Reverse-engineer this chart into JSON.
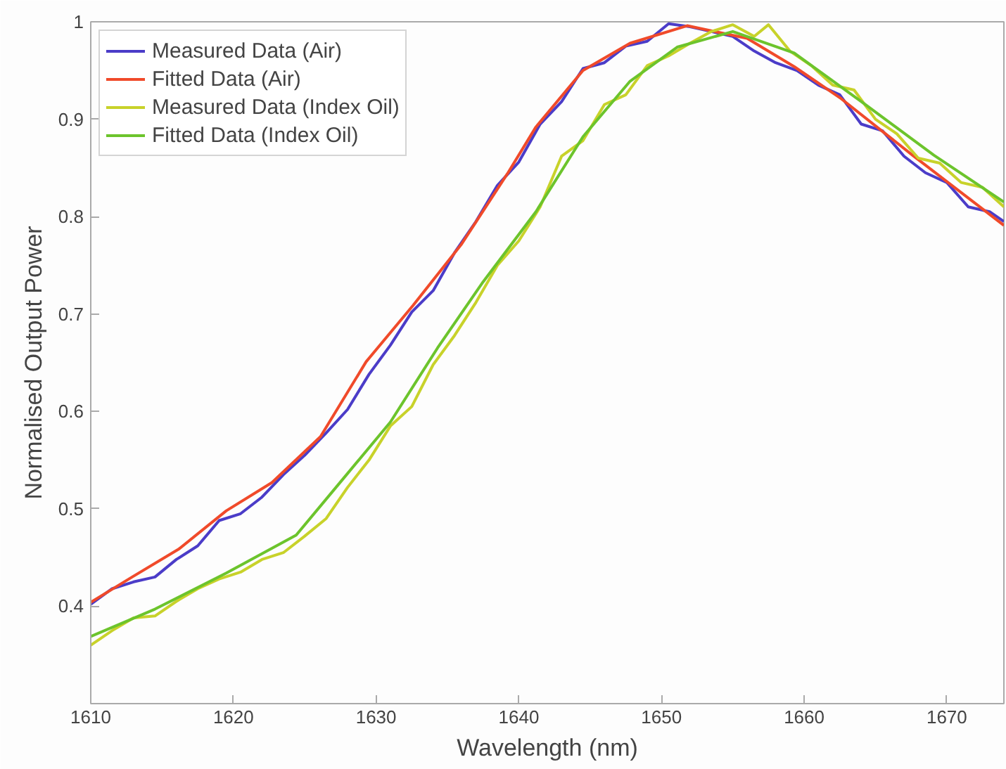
{
  "chart_data": {
    "type": "line",
    "xlabel": "Wavelength (nm)",
    "ylabel": "Normalised Output Power",
    "xlim": [
      1610,
      1674
    ],
    "ylim": [
      0.3,
      1
    ],
    "xticks": [
      1610,
      1620,
      1630,
      1640,
      1650,
      1660,
      1670
    ],
    "yticks": [
      0.4,
      0.5,
      0.6,
      0.7,
      0.8,
      0.9,
      1
    ],
    "legend": "top left",
    "grid": false,
    "marker": "none",
    "line_style": "solid",
    "series": [
      {
        "name": "Measured Data (Air)",
        "color": "#4b3cc8",
        "x": [
          1610,
          1611.5,
          1613,
          1614.5,
          1616,
          1617.5,
          1619,
          1620.5,
          1622,
          1623.5,
          1625,
          1626.5,
          1628,
          1629.5,
          1631,
          1632.5,
          1634,
          1635.5,
          1637,
          1638.5,
          1640,
          1641.5,
          1643,
          1644.5,
          1646,
          1647.5,
          1649,
          1650.5,
          1652,
          1653.5,
          1655,
          1656.5,
          1658,
          1659.5,
          1661,
          1662.5,
          1664,
          1665.5,
          1667,
          1668.5,
          1670,
          1671.5,
          1673,
          1674
        ],
        "values": [
          0.402,
          0.418,
          0.425,
          0.43,
          0.448,
          0.462,
          0.488,
          0.495,
          0.512,
          0.535,
          0.555,
          0.578,
          0.602,
          0.638,
          0.668,
          0.702,
          0.724,
          0.763,
          0.795,
          0.832,
          0.856,
          0.895,
          0.918,
          0.952,
          0.958,
          0.975,
          0.98,
          0.998,
          0.995,
          0.99,
          0.985,
          0.97,
          0.958,
          0.95,
          0.935,
          0.925,
          0.895,
          0.888,
          0.862,
          0.845,
          0.835,
          0.81,
          0.805,
          0.795
        ]
      },
      {
        "name": "Fitted Data (Air)",
        "color": "#f04a2a",
        "x": [
          1610,
          1612.9,
          1616.2,
          1619.5,
          1622.7,
          1626.1,
          1629.3,
          1632.6,
          1636,
          1639.2,
          1641.2,
          1644.5,
          1647.8,
          1651.8,
          1656,
          1659.3,
          1662.6,
          1667.6,
          1674
        ],
        "values": [
          0.404,
          0.43,
          0.459,
          0.498,
          0.527,
          0.574,
          0.651,
          0.709,
          0.772,
          0.844,
          0.892,
          0.95,
          0.978,
          0.996,
          0.983,
          0.954,
          0.921,
          0.863,
          0.791
        ]
      },
      {
        "name": "Measured Data (Index Oil)",
        "color": "#c8d22a",
        "x": [
          1610,
          1611.5,
          1613,
          1614.5,
          1616,
          1617.5,
          1619,
          1620.5,
          1622,
          1623.5,
          1625,
          1626.5,
          1628,
          1629.5,
          1631,
          1632.5,
          1634,
          1635.5,
          1637,
          1638.5,
          1640,
          1641.5,
          1643,
          1644.5,
          1646,
          1647.5,
          1649,
          1650.5,
          1652,
          1653.5,
          1655,
          1656.5,
          1657.5,
          1659,
          1660.5,
          1662,
          1663.5,
          1665,
          1666.5,
          1668,
          1669.5,
          1671,
          1672.5,
          1674
        ],
        "values": [
          0.36,
          0.375,
          0.388,
          0.39,
          0.405,
          0.418,
          0.428,
          0.435,
          0.448,
          0.455,
          0.472,
          0.49,
          0.522,
          0.55,
          0.585,
          0.605,
          0.648,
          0.678,
          0.712,
          0.75,
          0.775,
          0.81,
          0.862,
          0.878,
          0.915,
          0.925,
          0.955,
          0.965,
          0.978,
          0.99,
          0.997,
          0.985,
          0.997,
          0.97,
          0.955,
          0.935,
          0.93,
          0.9,
          0.885,
          0.86,
          0.855,
          0.835,
          0.83,
          0.81
        ]
      },
      {
        "name": "Fitted Data (Index Oil)",
        "color": "#6cc42c",
        "x": [
          1610,
          1614.5,
          1619.5,
          1624.4,
          1627.7,
          1631,
          1634.3,
          1637.5,
          1641.2,
          1644.5,
          1647.8,
          1651.1,
          1655,
          1659.3,
          1664.2,
          1669.1,
          1674
        ],
        "values": [
          0.369,
          0.397,
          0.434,
          0.473,
          0.531,
          0.589,
          0.665,
          0.733,
          0.805,
          0.882,
          0.939,
          0.974,
          0.99,
          0.968,
          0.916,
          0.863,
          0.815
        ]
      }
    ]
  }
}
